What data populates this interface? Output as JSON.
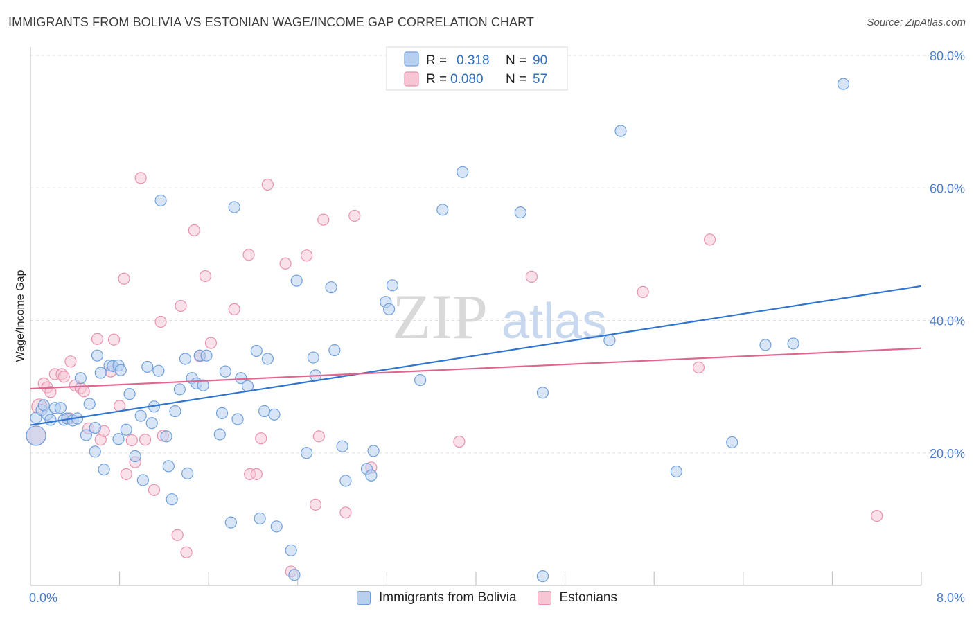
{
  "header": {
    "title": "IMMIGRANTS FROM BOLIVIA VS ESTONIAN WAGE/INCOME GAP CORRELATION CHART",
    "source": "Source: ZipAtlas.com"
  },
  "watermark": {
    "zip": "ZIP",
    "atlas": "atlas"
  },
  "colors": {
    "blue": "#6fa0dc",
    "blue_fill": "#b8d0f0",
    "blue_line": "#2f74d0",
    "pink": "#e891ab",
    "pink_fill": "#f6c6d5",
    "pink_line": "#e06690",
    "tick": "#4a7cc9"
  },
  "legend": {
    "rows": [
      {
        "r_label": "R =",
        "r_value": "0.318",
        "n_label": "N =",
        "n_value": "90"
      },
      {
        "r_label": "R =",
        "r_value": "0.080",
        "n_label": "N =",
        "n_value": "57"
      }
    ]
  },
  "bottom_legend": {
    "blue_label": "Immigrants from Bolivia",
    "pink_label": "Estonians"
  },
  "chart_data": {
    "type": "scatter",
    "title": "IMMIGRANTS FROM BOLIVIA VS ESTONIAN WAGE/INCOME GAP CORRELATION CHART",
    "xlabel": "",
    "ylabel": "Wage/Income Gap",
    "xlim": [
      0,
      8
    ],
    "ylim": [
      0,
      80
    ],
    "x_tick_labels": [
      "0.0%",
      "8.0%"
    ],
    "y_ticks": [
      20,
      40,
      60,
      80
    ],
    "y_tick_labels": [
      "20.0%",
      "40.0%",
      "60.0%",
      "80.0%"
    ],
    "grid": true,
    "legend_position": "top-center",
    "series": [
      {
        "name": "Immigrants from Bolivia",
        "color": "#6fa0dc",
        "trend": {
          "x": [
            0,
            8
          ],
          "y": [
            24.2,
            45.2
          ]
        },
        "points": [
          [
            0.05,
            22.6,
            14
          ],
          [
            0.05,
            25.3,
            8
          ],
          [
            0.1,
            26.5,
            8
          ],
          [
            0.12,
            27.2,
            8
          ],
          [
            0.15,
            25.8,
            8
          ],
          [
            0.18,
            25.0,
            8
          ],
          [
            0.22,
            26.8,
            8
          ],
          [
            0.27,
            26.8,
            8
          ],
          [
            0.3,
            25.0,
            8
          ],
          [
            0.33,
            25.2,
            8
          ],
          [
            0.38,
            24.9,
            8
          ],
          [
            0.42,
            25.2,
            8
          ],
          [
            0.45,
            31.3,
            8
          ],
          [
            0.5,
            22.7,
            8
          ],
          [
            0.53,
            27.4,
            8
          ],
          [
            0.58,
            23.8,
            8
          ],
          [
            0.58,
            20.2,
            8
          ],
          [
            0.6,
            34.7,
            8
          ],
          [
            0.63,
            32.1,
            8
          ],
          [
            0.66,
            17.5,
            8
          ],
          [
            0.71,
            33.2,
            8
          ],
          [
            0.74,
            33.1,
            8
          ],
          [
            0.79,
            22.1,
            8
          ],
          [
            0.79,
            33.2,
            8
          ],
          [
            0.81,
            32.5,
            8
          ],
          [
            0.86,
            23.5,
            8
          ],
          [
            0.89,
            28.9,
            8
          ],
          [
            0.94,
            19.5,
            8
          ],
          [
            0.99,
            25.6,
            8
          ],
          [
            1.01,
            15.9,
            8
          ],
          [
            1.05,
            33.0,
            8
          ],
          [
            1.09,
            24.5,
            8
          ],
          [
            1.11,
            27.0,
            8
          ],
          [
            1.15,
            32.4,
            8
          ],
          [
            1.17,
            58.1,
            8
          ],
          [
            1.22,
            22.5,
            8
          ],
          [
            1.24,
            18.0,
            8
          ],
          [
            1.27,
            13.0,
            8
          ],
          [
            1.3,
            26.3,
            8
          ],
          [
            1.34,
            29.6,
            8
          ],
          [
            1.39,
            34.2,
            8
          ],
          [
            1.41,
            16.9,
            8
          ],
          [
            1.45,
            31.3,
            8
          ],
          [
            1.49,
            30.5,
            8
          ],
          [
            1.52,
            34.7,
            8
          ],
          [
            1.55,
            30.2,
            8
          ],
          [
            1.58,
            34.7,
            8
          ],
          [
            1.7,
            22.8,
            8
          ],
          [
            1.72,
            26.0,
            8
          ],
          [
            1.75,
            32.3,
            8
          ],
          [
            1.8,
            9.5,
            8
          ],
          [
            1.83,
            57.1,
            8
          ],
          [
            1.86,
            25.1,
            8
          ],
          [
            1.89,
            31.3,
            8
          ],
          [
            1.95,
            30.1,
            8
          ],
          [
            2.03,
            35.4,
            8
          ],
          [
            2.06,
            10.1,
            8
          ],
          [
            2.1,
            26.3,
            8
          ],
          [
            2.13,
            34.2,
            8
          ],
          [
            2.19,
            25.8,
            8
          ],
          [
            2.21,
            8.9,
            8
          ],
          [
            2.34,
            5.3,
            8
          ],
          [
            2.37,
            1.6,
            8
          ],
          [
            2.39,
            46.0,
            8
          ],
          [
            2.48,
            20.0,
            8
          ],
          [
            2.54,
            34.4,
            8
          ],
          [
            2.56,
            31.7,
            8
          ],
          [
            2.7,
            45.0,
            8
          ],
          [
            2.73,
            35.5,
            8
          ],
          [
            2.8,
            21.0,
            8
          ],
          [
            2.83,
            15.8,
            8
          ],
          [
            3.02,
            17.6,
            8
          ],
          [
            3.06,
            16.6,
            8
          ],
          [
            3.08,
            20.3,
            8
          ],
          [
            3.19,
            42.8,
            8
          ],
          [
            3.22,
            41.7,
            8
          ],
          [
            3.25,
            45.3,
            8
          ],
          [
            3.5,
            31.0,
            8
          ],
          [
            3.7,
            56.7,
            8
          ],
          [
            3.88,
            62.4,
            8
          ],
          [
            4.4,
            56.3,
            8
          ],
          [
            4.6,
            29.1,
            8
          ],
          [
            4.6,
            1.4,
            8
          ],
          [
            5.2,
            37.0,
            8
          ],
          [
            5.3,
            68.6,
            8
          ],
          [
            5.8,
            17.2,
            8
          ],
          [
            6.3,
            21.6,
            8
          ],
          [
            6.6,
            36.3,
            8
          ],
          [
            6.85,
            36.5,
            8
          ],
          [
            7.3,
            75.7,
            8
          ]
        ]
      },
      {
        "name": "Estonians",
        "color": "#e891ab",
        "trend": {
          "x": [
            0,
            8
          ],
          "y": [
            29.7,
            35.8
          ]
        },
        "points": [
          [
            0.05,
            22.6,
            14
          ],
          [
            0.08,
            27.0,
            11
          ],
          [
            0.12,
            30.5,
            8
          ],
          [
            0.15,
            29.9,
            8
          ],
          [
            0.18,
            29.2,
            8
          ],
          [
            0.22,
            31.9,
            8
          ],
          [
            0.28,
            31.9,
            8
          ],
          [
            0.3,
            31.5,
            8
          ],
          [
            0.35,
            25.2,
            8
          ],
          [
            0.36,
            33.8,
            8
          ],
          [
            0.4,
            30.2,
            8
          ],
          [
            0.45,
            29.8,
            8
          ],
          [
            0.48,
            29.3,
            8
          ],
          [
            0.52,
            23.7,
            8
          ],
          [
            0.6,
            37.2,
            8
          ],
          [
            0.63,
            22.0,
            8
          ],
          [
            0.66,
            23.3,
            8
          ],
          [
            0.72,
            32.3,
            8
          ],
          [
            0.75,
            37.1,
            8
          ],
          [
            0.8,
            27.1,
            8
          ],
          [
            0.84,
            46.3,
            8
          ],
          [
            0.86,
            16.8,
            8
          ],
          [
            0.91,
            21.9,
            8
          ],
          [
            0.94,
            18.6,
            8
          ],
          [
            0.99,
            61.5,
            8
          ],
          [
            1.03,
            22.0,
            8
          ],
          [
            1.11,
            14.4,
            8
          ],
          [
            1.17,
            39.8,
            8
          ],
          [
            1.19,
            22.6,
            8
          ],
          [
            1.32,
            7.6,
            8
          ],
          [
            1.35,
            42.2,
            8
          ],
          [
            1.4,
            5.0,
            8
          ],
          [
            1.47,
            53.6,
            8
          ],
          [
            1.52,
            34.6,
            8
          ],
          [
            1.57,
            46.7,
            8
          ],
          [
            1.62,
            36.6,
            8
          ],
          [
            1.83,
            41.7,
            8
          ],
          [
            1.96,
            49.9,
            8
          ],
          [
            1.97,
            16.8,
            8
          ],
          [
            2.03,
            16.8,
            8
          ],
          [
            2.07,
            22.2,
            8
          ],
          [
            2.13,
            60.5,
            8
          ],
          [
            2.29,
            48.6,
            8
          ],
          [
            2.34,
            2.1,
            8
          ],
          [
            2.48,
            49.8,
            8
          ],
          [
            2.56,
            12.2,
            8
          ],
          [
            2.59,
            22.5,
            8
          ],
          [
            2.63,
            55.2,
            8
          ],
          [
            2.83,
            11.0,
            8
          ],
          [
            2.91,
            55.8,
            8
          ],
          [
            3.06,
            17.8,
            8
          ],
          [
            3.85,
            21.7,
            8
          ],
          [
            4.5,
            46.6,
            8
          ],
          [
            5.5,
            44.3,
            8
          ],
          [
            6.0,
            32.9,
            8
          ],
          [
            6.1,
            52.2,
            8
          ],
          [
            7.6,
            10.5,
            8
          ]
        ]
      }
    ]
  }
}
